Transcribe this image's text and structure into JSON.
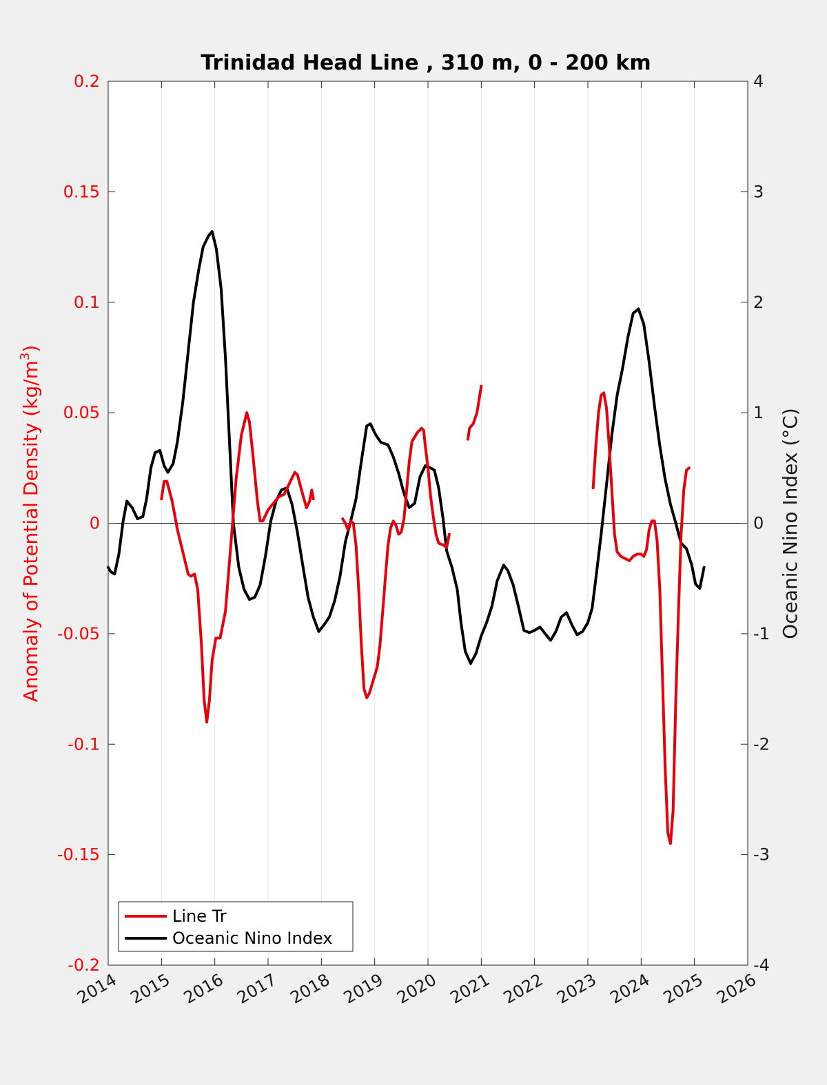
{
  "chart_data": {
    "type": "line",
    "title": "Trinidad Head Line , 310 m, 0 - 200 km",
    "ylabel_left": "Anomaly of Potential Density (kg/m",
    "ylabel_left_sup": "3",
    "ylabel_left_close": ")",
    "ylabel_right": "Oceanic Nino Index (°C)",
    "xlim": [
      2014,
      2026
    ],
    "ylim_left": [
      -0.2,
      0.2
    ],
    "ylim_right": [
      -4,
      4
    ],
    "x_ticks": [
      "2014",
      "2015",
      "2016",
      "2017",
      "2018",
      "2019",
      "2020",
      "2021",
      "2022",
      "2023",
      "2024",
      "2025",
      "2026"
    ],
    "y_left_ticks": [
      "0.2",
      "0.15",
      "0.1",
      "0.05",
      "0",
      "-0.05",
      "-0.1",
      "-0.15",
      "-0.2"
    ],
    "y_right_ticks": [
      "4",
      "3",
      "2",
      "1",
      "0",
      "-1",
      "-2",
      "-3",
      "-4"
    ],
    "grid": "vertical",
    "zero_line": true,
    "legend_position": "bottom-left",
    "colors": {
      "line_tr": "#e8000b",
      "oni": "#000000",
      "left_axis": "#ff0000"
    },
    "series": [
      {
        "name": "Line Tr",
        "axis": "left",
        "color": "#e8000b",
        "segments": [
          [
            [
              2015.0,
              0.011
            ],
            [
              2015.05,
              0.019
            ],
            [
              2015.1,
              0.019
            ],
            [
              2015.2,
              0.01
            ],
            [
              2015.3,
              -0.003
            ],
            [
              2015.4,
              -0.013
            ],
            [
              2015.5,
              -0.023
            ],
            [
              2015.55,
              -0.024
            ],
            [
              2015.62,
              -0.023
            ],
            [
              2015.68,
              -0.03
            ],
            [
              2015.75,
              -0.055
            ],
            [
              2015.8,
              -0.08
            ],
            [
              2015.85,
              -0.09
            ],
            [
              2015.9,
              -0.08
            ],
            [
              2015.95,
              -0.062
            ],
            [
              2016.02,
              -0.052
            ],
            [
              2016.1,
              -0.052
            ],
            [
              2016.2,
              -0.04
            ],
            [
              2016.3,
              -0.01
            ],
            [
              2016.4,
              0.02
            ],
            [
              2016.5,
              0.04
            ],
            [
              2016.6,
              0.05
            ],
            [
              2016.65,
              0.046
            ],
            [
              2016.72,
              0.03
            ],
            [
              2016.8,
              0.01
            ],
            [
              2016.85,
              0.001
            ],
            [
              2016.9,
              0.001
            ],
            [
              2017.0,
              0.006
            ],
            [
              2017.1,
              0.009
            ],
            [
              2017.2,
              0.012
            ],
            [
              2017.3,
              0.013
            ],
            [
              2017.4,
              0.018
            ],
            [
              2017.5,
              0.023
            ],
            [
              2017.55,
              0.022
            ],
            [
              2017.65,
              0.013
            ],
            [
              2017.72,
              0.007
            ],
            [
              2017.78,
              0.01
            ],
            [
              2017.82,
              0.015
            ],
            [
              2017.85,
              0.011
            ]
          ],
          [
            [
              2018.4,
              0.002
            ],
            [
              2018.45,
              0.0
            ],
            [
              2018.5,
              -0.003
            ],
            [
              2018.55,
              0.001
            ],
            [
              2018.6,
              0.0
            ],
            [
              2018.65,
              -0.01
            ],
            [
              2018.7,
              -0.03
            ],
            [
              2018.75,
              -0.055
            ],
            [
              2018.8,
              -0.075
            ],
            [
              2018.85,
              -0.079
            ],
            [
              2018.9,
              -0.077
            ],
            [
              2018.95,
              -0.073
            ],
            [
              2019.05,
              -0.065
            ],
            [
              2019.1,
              -0.055
            ],
            [
              2019.15,
              -0.04
            ],
            [
              2019.2,
              -0.025
            ],
            [
              2019.25,
              -0.01
            ],
            [
              2019.3,
              -0.002
            ],
            [
              2019.35,
              0.001
            ],
            [
              2019.4,
              -0.001
            ],
            [
              2019.45,
              -0.005
            ],
            [
              2019.5,
              -0.004
            ],
            [
              2019.55,
              0.002
            ],
            [
              2019.6,
              0.015
            ],
            [
              2019.65,
              0.028
            ],
            [
              2019.7,
              0.037
            ],
            [
              2019.8,
              0.041
            ],
            [
              2019.88,
              0.043
            ],
            [
              2019.92,
              0.042
            ],
            [
              2019.95,
              0.035
            ],
            [
              2020.0,
              0.025
            ],
            [
              2020.05,
              0.012
            ],
            [
              2020.1,
              0.003
            ],
            [
              2020.15,
              -0.005
            ],
            [
              2020.2,
              -0.009
            ],
            [
              2020.3,
              -0.01
            ],
            [
              2020.35,
              -0.011
            ],
            [
              2020.4,
              -0.005
            ]
          ],
          [
            [
              2020.75,
              0.038
            ],
            [
              2020.78,
              0.043
            ],
            [
              2020.85,
              0.045
            ],
            [
              2020.92,
              0.05
            ],
            [
              2021.0,
              0.062
            ]
          ],
          [
            [
              2023.1,
              0.016
            ],
            [
              2023.15,
              0.035
            ],
            [
              2023.2,
              0.05
            ],
            [
              2023.25,
              0.058
            ],
            [
              2023.3,
              0.059
            ],
            [
              2023.35,
              0.052
            ],
            [
              2023.4,
              0.035
            ],
            [
              2023.45,
              0.015
            ],
            [
              2023.5,
              -0.005
            ],
            [
              2023.55,
              -0.013
            ],
            [
              2023.62,
              -0.015
            ],
            [
              2023.7,
              -0.016
            ],
            [
              2023.78,
              -0.017
            ],
            [
              2023.85,
              -0.015
            ],
            [
              2023.92,
              -0.014
            ],
            [
              2024.0,
              -0.014
            ],
            [
              2024.05,
              -0.015
            ],
            [
              2024.1,
              -0.012
            ],
            [
              2024.15,
              -0.003
            ],
            [
              2024.2,
              0.001
            ],
            [
              2024.25,
              0.001
            ],
            [
              2024.3,
              -0.008
            ],
            [
              2024.35,
              -0.03
            ],
            [
              2024.4,
              -0.07
            ],
            [
              2024.45,
              -0.11
            ],
            [
              2024.5,
              -0.14
            ],
            [
              2024.55,
              -0.145
            ],
            [
              2024.6,
              -0.13
            ],
            [
              2024.65,
              -0.08
            ],
            [
              2024.7,
              -0.04
            ],
            [
              2024.75,
              -0.005
            ],
            [
              2024.8,
              0.015
            ],
            [
              2024.85,
              0.024
            ],
            [
              2024.9,
              0.025
            ]
          ]
        ]
      },
      {
        "name": "Oceanic Nino Index",
        "axis": "right",
        "color": "#000000",
        "segments": [
          [
            [
              2014.0,
              -0.4
            ],
            [
              2014.05,
              -0.44
            ],
            [
              2014.12,
              -0.46
            ],
            [
              2014.2,
              -0.28
            ],
            [
              2014.28,
              0.02
            ],
            [
              2014.35,
              0.2
            ],
            [
              2014.45,
              0.14
            ],
            [
              2014.55,
              0.04
            ],
            [
              2014.65,
              0.06
            ],
            [
              2014.72,
              0.22
            ],
            [
              2014.8,
              0.5
            ],
            [
              2014.88,
              0.64
            ],
            [
              2014.97,
              0.66
            ],
            [
              2015.05,
              0.52
            ],
            [
              2015.12,
              0.46
            ],
            [
              2015.22,
              0.54
            ],
            [
              2015.3,
              0.74
            ],
            [
              2015.4,
              1.1
            ],
            [
              2015.5,
              1.55
            ],
            [
              2015.6,
              2.0
            ],
            [
              2015.7,
              2.3
            ],
            [
              2015.78,
              2.5
            ],
            [
              2015.88,
              2.6
            ],
            [
              2015.95,
              2.64
            ],
            [
              2016.03,
              2.48
            ],
            [
              2016.12,
              2.12
            ],
            [
              2016.2,
              1.5
            ],
            [
              2016.28,
              0.7
            ],
            [
              2016.35,
              0.0
            ],
            [
              2016.45,
              -0.4
            ],
            [
              2016.55,
              -0.6
            ],
            [
              2016.65,
              -0.69
            ],
            [
              2016.75,
              -0.67
            ],
            [
              2016.85,
              -0.56
            ],
            [
              2016.95,
              -0.3
            ],
            [
              2017.05,
              0.02
            ],
            [
              2017.15,
              0.2
            ],
            [
              2017.25,
              0.3
            ],
            [
              2017.35,
              0.32
            ],
            [
              2017.45,
              0.17
            ],
            [
              2017.55,
              -0.08
            ],
            [
              2017.65,
              -0.38
            ],
            [
              2017.75,
              -0.67
            ],
            [
              2017.85,
              -0.85
            ],
            [
              2017.95,
              -0.98
            ],
            [
              2018.05,
              -0.92
            ],
            [
              2018.15,
              -0.85
            ],
            [
              2018.25,
              -0.7
            ],
            [
              2018.35,
              -0.48
            ],
            [
              2018.45,
              -0.17
            ],
            [
              2018.55,
              0.02
            ],
            [
              2018.65,
              0.22
            ],
            [
              2018.75,
              0.56
            ],
            [
              2018.85,
              0.88
            ],
            [
              2018.92,
              0.9
            ],
            [
              2019.02,
              0.8
            ],
            [
              2019.12,
              0.73
            ],
            [
              2019.25,
              0.71
            ],
            [
              2019.35,
              0.6
            ],
            [
              2019.45,
              0.45
            ],
            [
              2019.55,
              0.27
            ],
            [
              2019.65,
              0.14
            ],
            [
              2019.75,
              0.18
            ],
            [
              2019.85,
              0.42
            ],
            [
              2019.95,
              0.52
            ],
            [
              2020.05,
              0.5
            ],
            [
              2020.12,
              0.48
            ],
            [
              2020.2,
              0.32
            ],
            [
              2020.28,
              0.05
            ],
            [
              2020.35,
              -0.25
            ],
            [
              2020.45,
              -0.4
            ],
            [
              2020.55,
              -0.6
            ],
            [
              2020.62,
              -0.9
            ],
            [
              2020.7,
              -1.16
            ],
            [
              2020.8,
              -1.27
            ],
            [
              2020.9,
              -1.18
            ],
            [
              2021.0,
              -1.02
            ],
            [
              2021.1,
              -0.9
            ],
            [
              2021.2,
              -0.75
            ],
            [
              2021.3,
              -0.52
            ],
            [
              2021.42,
              -0.38
            ],
            [
              2021.5,
              -0.43
            ],
            [
              2021.6,
              -0.56
            ],
            [
              2021.7,
              -0.76
            ],
            [
              2021.8,
              -0.97
            ],
            [
              2021.9,
              -0.99
            ],
            [
              2022.0,
              -0.97
            ],
            [
              2022.1,
              -0.94
            ],
            [
              2022.2,
              -1.0
            ],
            [
              2022.3,
              -1.06
            ],
            [
              2022.4,
              -0.98
            ],
            [
              2022.5,
              -0.85
            ],
            [
              2022.6,
              -0.81
            ],
            [
              2022.7,
              -0.92
            ],
            [
              2022.8,
              -1.01
            ],
            [
              2022.9,
              -0.98
            ],
            [
              2023.0,
              -0.9
            ],
            [
              2023.08,
              -0.77
            ],
            [
              2023.15,
              -0.5
            ],
            [
              2023.25,
              -0.1
            ],
            [
              2023.35,
              0.35
            ],
            [
              2023.45,
              0.8
            ],
            [
              2023.55,
              1.16
            ],
            [
              2023.65,
              1.4
            ],
            [
              2023.75,
              1.68
            ],
            [
              2023.85,
              1.9
            ],
            [
              2023.95,
              1.94
            ],
            [
              2024.05,
              1.8
            ],
            [
              2024.15,
              1.46
            ],
            [
              2024.25,
              1.06
            ],
            [
              2024.35,
              0.7
            ],
            [
              2024.45,
              0.4
            ],
            [
              2024.55,
              0.17
            ],
            [
              2024.65,
              0.0
            ],
            [
              2024.75,
              -0.18
            ],
            [
              2024.85,
              -0.23
            ],
            [
              2024.95,
              -0.38
            ],
            [
              2025.02,
              -0.55
            ],
            [
              2025.1,
              -0.59
            ],
            [
              2025.18,
              -0.4
            ]
          ]
        ]
      }
    ],
    "legend": [
      "Line Tr",
      "Oceanic Nino Index"
    ]
  }
}
